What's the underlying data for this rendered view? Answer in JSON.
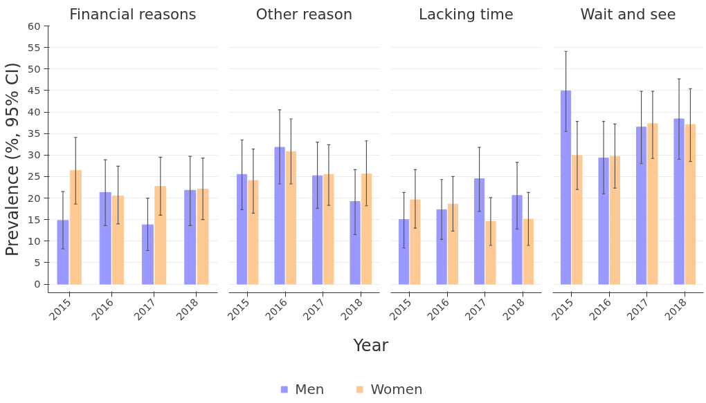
{
  "chart_data": [
    {
      "type": "bar",
      "title": "Financial reasons",
      "ylabel": "Prevalence (%, 95% CI)",
      "categories": [
        "2015",
        "2016",
        "2017",
        "2018"
      ],
      "ylim": [
        -2,
        60
      ],
      "yticks": [
        0,
        5,
        10,
        15,
        20,
        25,
        30,
        35,
        40,
        45,
        50,
        55,
        60
      ],
      "grid": "y",
      "legend": "bottom",
      "series": [
        {
          "name": "Men",
          "color": "#9999ff",
          "values": [
            14.8,
            21.3,
            13.8,
            21.8
          ],
          "errors": [
            [
              8.2,
              21.5
            ],
            [
              13.6,
              28.9
            ],
            [
              7.8,
              20.0
            ],
            [
              13.6,
              29.7
            ]
          ]
        },
        {
          "name": "Women",
          "color": "#ffc993",
          "values": [
            26.4,
            20.5,
            22.7,
            22.1
          ],
          "errors": [
            [
              18.6,
              34.1
            ],
            [
              14.0,
              27.4
            ],
            [
              16.0,
              29.5
            ],
            [
              15.0,
              29.3
            ]
          ]
        }
      ]
    },
    {
      "type": "bar",
      "title": "Other reason",
      "xlabel": "Year",
      "categories": [
        "2015",
        "2016",
        "2017",
        "2018"
      ],
      "ylim": [
        -2,
        60
      ],
      "yticks": [
        0,
        5,
        10,
        15,
        20,
        25,
        30,
        35,
        40,
        45,
        50,
        55,
        60
      ],
      "grid": "y",
      "tick_labels": "x",
      "series": [
        {
          "color": "#9999ff",
          "values": [
            25.5,
            31.8,
            25.2,
            19.2
          ],
          "errors": [
            [
              17.3,
              33.5
            ],
            [
              23.3,
              40.5
            ],
            [
              17.6,
              33.0
            ],
            [
              11.5,
              26.6
            ]
          ]
        },
        {
          "color": "#ffc993",
          "values": [
            24.1,
            30.8,
            25.5,
            25.6
          ],
          "errors": [
            [
              16.5,
              31.4
            ],
            [
              23.3,
              38.4
            ],
            [
              18.3,
              32.4
            ],
            [
              18.2,
              33.3
            ]
          ]
        }
      ]
    },
    {
      "type": "bar",
      "title": "Lacking time",
      "categories": [
        "2015",
        "2016",
        "2017",
        "2018"
      ],
      "ylim": [
        -2,
        60
      ],
      "yticks": [
        0,
        5,
        10,
        15,
        20,
        25,
        30,
        35,
        40,
        45,
        50,
        55,
        60
      ],
      "grid": "y",
      "tick_labels": "x",
      "series": [
        {
          "color": "#9999ff",
          "values": [
            15.0,
            17.3,
            24.5,
            20.6
          ],
          "errors": [
            [
              8.4,
              21.3
            ],
            [
              10.4,
              24.3
            ],
            [
              16.9,
              31.8
            ],
            [
              12.8,
              28.3
            ]
          ]
        },
        {
          "color": "#ffc993",
          "values": [
            19.6,
            18.6,
            14.6,
            15.1
          ],
          "errors": [
            [
              13.0,
              26.6
            ],
            [
              12.3,
              25.0
            ],
            [
              9.0,
              20.1
            ],
            [
              9.0,
              21.3
            ]
          ]
        }
      ]
    },
    {
      "type": "bar",
      "title": "Wait and see",
      "categories": [
        "2015",
        "2016",
        "2017",
        "2018"
      ],
      "ylim": [
        -2,
        60
      ],
      "yticks": [
        0,
        5,
        10,
        15,
        20,
        25,
        30,
        35,
        40,
        45,
        50,
        55,
        60
      ],
      "grid": "y",
      "tick_labels": "x",
      "series": [
        {
          "color": "#9999ff",
          "values": [
            44.9,
            29.3,
            36.5,
            38.4
          ],
          "errors": [
            [
              35.5,
              54.1
            ],
            [
              21.0,
              37.8
            ],
            [
              28.0,
              44.8
            ],
            [
              29.0,
              47.7
            ]
          ]
        },
        {
          "color": "#ffc993",
          "values": [
            29.9,
            29.7,
            37.3,
            37.1
          ],
          "errors": [
            [
              22.0,
              37.8
            ],
            [
              22.3,
              37.2
            ],
            [
              29.2,
              44.8
            ],
            [
              28.5,
              45.4
            ]
          ]
        }
      ]
    }
  ]
}
